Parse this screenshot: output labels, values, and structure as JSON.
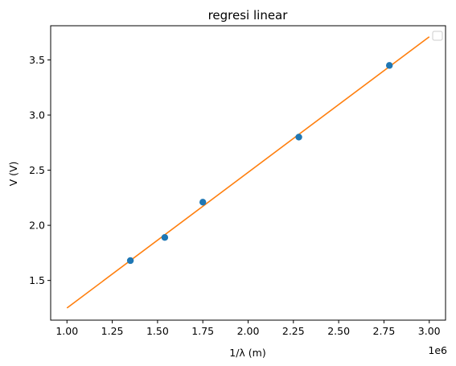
{
  "chart_data": {
    "type": "scatter",
    "title": "regresi linear",
    "xlabel": "1/λ (m)",
    "ylabel": "V (V)",
    "x_offset_label": "1e6",
    "xlim": [
      0.91,
      3.09
    ],
    "ylim": [
      1.14,
      3.81
    ],
    "xticks": [
      1.0,
      1.25,
      1.5,
      1.75,
      2.0,
      2.25,
      2.5,
      2.75,
      3.0
    ],
    "xtick_labels": [
      "1.00",
      "1.25",
      "1.50",
      "1.75",
      "2.00",
      "2.25",
      "2.50",
      "2.75",
      "3.00"
    ],
    "yticks": [
      1.5,
      2.0,
      2.5,
      3.0,
      3.5
    ],
    "ytick_labels": [
      "1.5",
      "2.0",
      "2.5",
      "3.0",
      "3.5"
    ],
    "series": [
      {
        "name": "data",
        "kind": "scatter",
        "color": "#1f77b4",
        "x": [
          1.35,
          1.54,
          1.75,
          2.28,
          2.78
        ],
        "y": [
          1.68,
          1.89,
          2.21,
          2.8,
          3.45
        ]
      },
      {
        "name": "fit",
        "kind": "line",
        "color": "#ff7f0e",
        "x": [
          1.0,
          3.0
        ],
        "y": [
          1.25,
          3.71
        ]
      }
    ],
    "legend": {
      "position": "top-right",
      "entries": []
    }
  }
}
